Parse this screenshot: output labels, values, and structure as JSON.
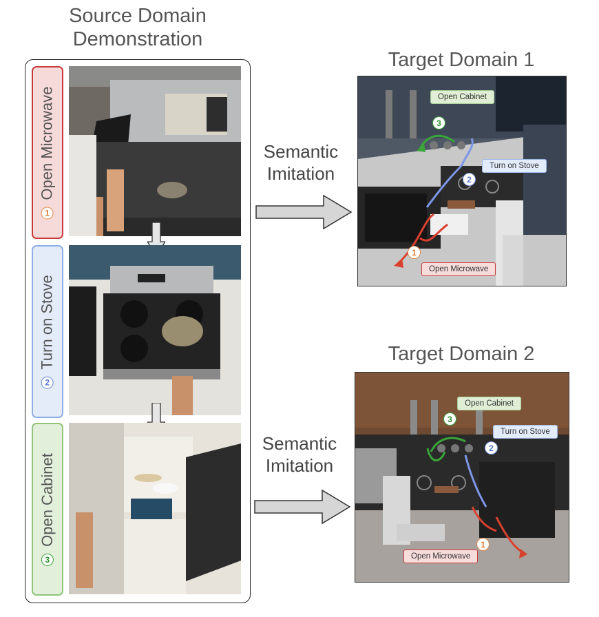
{
  "source": {
    "title_line1": "Source Domain",
    "title_line2": "Demonstration",
    "steps": [
      {
        "number": "1",
        "label": "Open Microwave",
        "color": "#c83a3a",
        "bg": "#f6d9d9"
      },
      {
        "number": "2",
        "label": "Turn on Stove",
        "color": "#8eaee6",
        "bg": "#e4ecf9"
      },
      {
        "number": "3",
        "label": "Open Cabinet",
        "color": "#8fc47a",
        "bg": "#e2efda"
      }
    ]
  },
  "arrows": {
    "top": {
      "line1": "Semantic",
      "line2": "Imitation"
    },
    "bottom": {
      "line1": "Semantic",
      "line2": "Imitation"
    }
  },
  "targets": [
    {
      "title": "Target Domain 1",
      "tags": {
        "cabinet": "Open Cabinet",
        "stove": "Turn on Stove",
        "microwave": "Open Microwave"
      },
      "step_numbers": [
        "1",
        "2",
        "3"
      ]
    },
    {
      "title": "Target Domain 2",
      "tags": {
        "cabinet": "Open Cabinet",
        "stove": "Turn on Stove",
        "microwave": "Open Microwave"
      },
      "step_numbers": [
        "1",
        "2",
        "3"
      ]
    }
  ],
  "colors": {
    "red_arrow": "#d9412f",
    "blue_arrow": "#7d97e8",
    "green_arrow": "#3aa53a",
    "gray_arrow_fill": "#d6d6d6"
  }
}
